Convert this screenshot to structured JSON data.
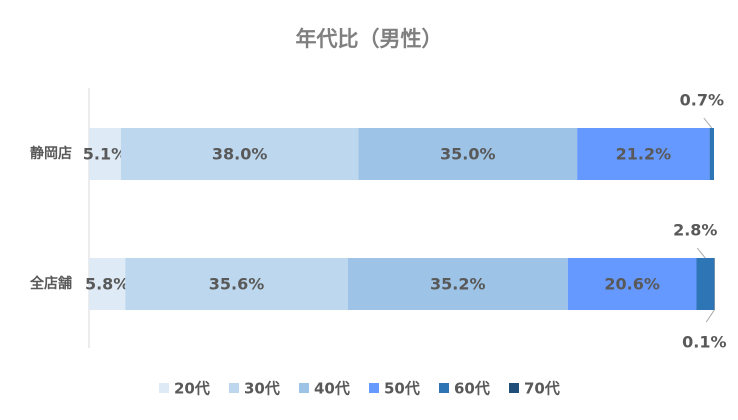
{
  "chart_data": {
    "type": "stacked-bar-horizontal",
    "title": "年代比（男性）",
    "categories": [
      "静岡店",
      "全店舗"
    ],
    "xlim": [
      0,
      100
    ],
    "legend": "bottom",
    "series": [
      {
        "name": "20代",
        "color": "#deebf7",
        "values": [
          5.1,
          5.8
        ],
        "value_labels": [
          "5.1%",
          "5.8%"
        ]
      },
      {
        "name": "30代",
        "color": "#bdd7ee",
        "values": [
          38.0,
          35.6
        ],
        "value_labels": [
          "38.0%",
          "35.6%"
        ]
      },
      {
        "name": "40代",
        "color": "#9dc3e6",
        "values": [
          35.0,
          35.2
        ],
        "value_labels": [
          "35.0%",
          "35.2%"
        ]
      },
      {
        "name": "50代",
        "color": "#6699ff",
        "values": [
          21.2,
          20.6
        ],
        "value_labels": [
          "21.2%",
          "20.6%"
        ]
      },
      {
        "name": "60代",
        "color": "#2e75b6",
        "values": [
          0.7,
          2.8
        ],
        "value_labels": [
          "0.7%",
          "2.8%"
        ]
      },
      {
        "name": "70代",
        "color": "#1f4e79",
        "values": [
          0,
          0.1
        ],
        "value_labels": [
          null,
          "0.1%"
        ]
      }
    ]
  }
}
